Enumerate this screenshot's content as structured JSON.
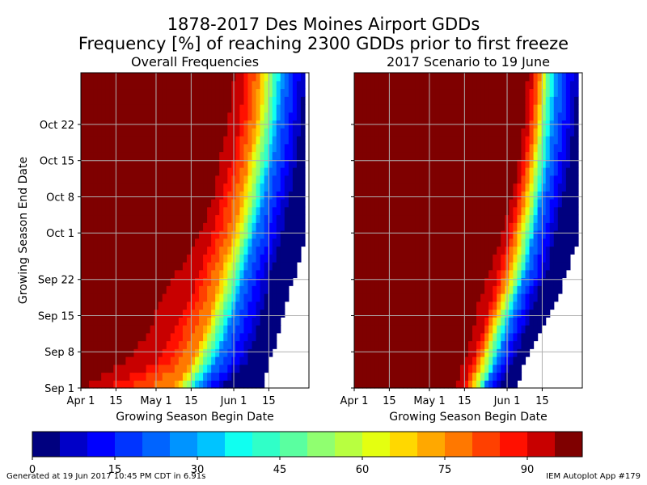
{
  "figure": {
    "title_line1": "1878-2017 Des Moines Airport GDDs",
    "title_line2": "Frequency [%] of reaching 2300 GDDs prior to first freeze",
    "footer_left": "Generated at 19 Jun 2017 10:45 PM CDT in 6.91s",
    "footer_right": "IEM Autoplot App #179"
  },
  "chart_data": [
    {
      "type": "heatmap",
      "title": "Overall Frequencies",
      "xlabel": "Growing Season Begin Date",
      "ylabel": "Growing Season End Date",
      "x_range": [
        "Apr 1",
        "Jun 30"
      ],
      "y_range": [
        "Sep 1",
        "Oct 31"
      ],
      "xticks": [
        "Apr 1",
        "15",
        "May 1",
        "15",
        "Jun 1",
        "15"
      ],
      "yticks": [
        "Sep 1",
        "Sep 8",
        "Sep 15",
        "Sep 22",
        "Oct 1",
        "Oct 8",
        "Oct 15",
        "Oct 22"
      ],
      "grid": true,
      "contour_rows": [
        {
          "end": "Sep 1",
          "c95": "Apr 1",
          "c90": "Apr 11",
          "c75": "May 8",
          "c50": "May 13",
          "c25": "May 18",
          "c5": "May 27",
          "c0": "Jun 12"
        },
        {
          "end": "Sep 6",
          "c95": "Apr 19",
          "c90": "May 1",
          "c75": "May 15",
          "c50": "May 20",
          "c25": "May 25",
          "c5": "Jun 6",
          "c0": "Jun 15"
        },
        {
          "end": "Sep 12",
          "c95": "Apr 28",
          "c90": "May 8",
          "c75": "May 20",
          "c50": "May 25",
          "c25": "May 30",
          "c5": "Jun 10",
          "c0": "Jun 19"
        },
        {
          "end": "Sep 18",
          "c95": "May 3",
          "c90": "May 14",
          "c75": "May 24",
          "c50": "May 29",
          "c25": "Jun 3",
          "c5": "Jun 13",
          "c0": "Jun 22"
        },
        {
          "end": "Sep 24",
          "c95": "May 10",
          "c90": "May 19",
          "c75": "May 27",
          "c50": "Jun 2",
          "c25": "Jun 6",
          "c5": "Jun 16",
          "c0": "Jun 26"
        },
        {
          "end": "Oct 1",
          "c95": "May 19",
          "c90": "May 24",
          "c75": "Jun 1",
          "c50": "Jun 6",
          "c25": "Jun 10",
          "c5": "Jun 20",
          "c0": "Jun 30"
        },
        {
          "end": "Oct 8",
          "c95": "May 24",
          "c90": "May 27",
          "c75": "Jun 4",
          "c50": "Jun 9",
          "c25": "Jun 13",
          "c5": "Jun 23",
          "c0": "Jun 30"
        },
        {
          "end": "Oct 16",
          "c95": "May 27",
          "c90": "Jun 1",
          "c75": "Jun 7",
          "c50": "Jun 12",
          "c25": "Jun 17",
          "c5": "Jun 26",
          "c0": "Jun 30"
        },
        {
          "end": "Oct 24",
          "c95": "May 30",
          "c90": "Jun 4",
          "c75": "Jun 10",
          "c50": "Jun 15",
          "c25": "Jun 19",
          "c5": "Jun 28",
          "c0": "Jun 30"
        },
        {
          "end": "Oct 31",
          "c95": "Jun 1",
          "c90": "Jun 5",
          "c75": "Jun 11",
          "c50": "Jun 16",
          "c25": "Jun 21",
          "c5": "Jun 29",
          "c0": "Jun 30"
        }
      ]
    },
    {
      "type": "heatmap",
      "title": "2017 Scenario to 19 June",
      "xlabel": "Growing Season Begin Date",
      "ylabel": "",
      "x_range": [
        "Apr 1",
        "Jun 30"
      ],
      "y_range": [
        "Sep 1",
        "Oct 31"
      ],
      "xticks": [
        "Apr 1",
        "15",
        "May 1",
        "15",
        "Jun 1",
        "15"
      ],
      "yticks": [
        "Sep 1",
        "Sep 8",
        "Sep 15",
        "Sep 22",
        "Oct 1",
        "Oct 8",
        "Oct 15",
        "Oct 22"
      ],
      "grid": true,
      "contour_rows": [
        {
          "end": "Sep 1",
          "c95": "May 11",
          "c90": "May 15",
          "c75": "May 17",
          "c50": "May 21",
          "c25": "May 23",
          "c5": "May 28",
          "c0": "Jun 5"
        },
        {
          "end": "Sep 6",
          "c95": "May 15",
          "c90": "May 18",
          "c75": "May 21",
          "c50": "May 25",
          "c25": "May 28",
          "c5": "Jun 3",
          "c0": "Jun 8"
        },
        {
          "end": "Sep 12",
          "c95": "May 18",
          "c90": "May 22",
          "c75": "May 25",
          "c50": "May 28",
          "c25": "Jun 1",
          "c5": "Jun 8",
          "c0": "Jun 15"
        },
        {
          "end": "Sep 18",
          "c95": "May 21",
          "c90": "May 26",
          "c75": "May 29",
          "c50": "Jun 2",
          "c25": "Jun 5",
          "c5": "Jun 12",
          "c0": "Jun 21"
        },
        {
          "end": "Sep 24",
          "c95": "May 25",
          "c90": "May 29",
          "c75": "Jun 2",
          "c50": "Jun 6",
          "c25": "Jun 9",
          "c5": "Jun 17",
          "c0": "Jun 25"
        },
        {
          "end": "Oct 1",
          "c95": "May 30",
          "c90": "Jun 2",
          "c75": "Jun 5",
          "c50": "Jun 9",
          "c25": "Jun 12",
          "c5": "Jun 20",
          "c0": "Jun 30"
        },
        {
          "end": "Oct 8",
          "c95": "Jun 3",
          "c90": "Jun 5",
          "c75": "Jun 8",
          "c50": "Jun 12",
          "c25": "Jun 15",
          "c5": "Jun 23",
          "c0": "Jun 30"
        },
        {
          "end": "Oct 16",
          "c95": "Jun 6",
          "c90": "Jun 8",
          "c75": "Jun 11",
          "c50": "Jun 14",
          "c25": "Jun 18",
          "c5": "Jun 26",
          "c0": "Jun 30"
        },
        {
          "end": "Oct 24",
          "c95": "Jun 8",
          "c90": "Jun 10",
          "c75": "Jun 13",
          "c50": "Jun 16",
          "c25": "Jun 20",
          "c5": "Jun 28",
          "c0": "Jun 30"
        },
        {
          "end": "Oct 31",
          "c95": "Jun 9",
          "c90": "Jun 11",
          "c75": "Jun 14",
          "c50": "Jun 17",
          "c25": "Jun 21",
          "c5": "Jun 29",
          "c0": "Jun 30"
        }
      ]
    }
  ],
  "colorbar": {
    "ticks": [
      "0",
      "15",
      "30",
      "45",
      "60",
      "75",
      "90"
    ],
    "levels": [
      0,
      5,
      10,
      15,
      20,
      25,
      30,
      35,
      40,
      45,
      50,
      55,
      60,
      65,
      70,
      75,
      80,
      85,
      90,
      95,
      100
    ],
    "colors": [
      "#00007f",
      "#0000c8",
      "#0000ff",
      "#0034ff",
      "#0064ff",
      "#0094ff",
      "#00c4ff",
      "#10fff0",
      "#30ffc8",
      "#5affa0",
      "#90ff70",
      "#b8ff40",
      "#e4ff10",
      "#ffd800",
      "#ffa800",
      "#ff7800",
      "#ff4000",
      "#ff1000",
      "#c80000",
      "#7f0000"
    ]
  }
}
